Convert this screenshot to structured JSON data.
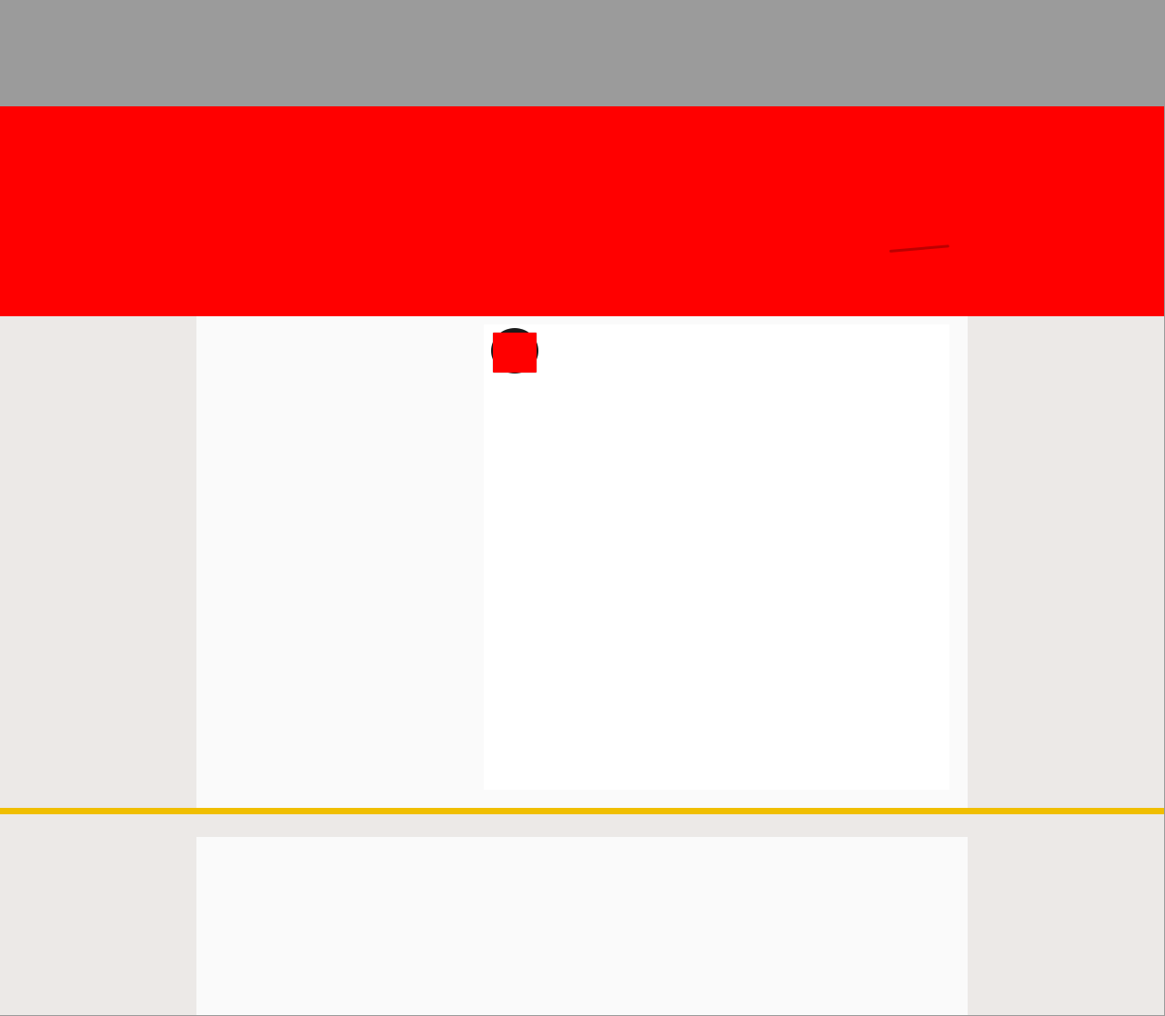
{
  "colors": {
    "top_bar": "#9B9B9B",
    "hero_banner": "#FF0000",
    "page_background": "#ECE9E7",
    "panel_background": "#FAFAFA",
    "card_background": "#FFFFFF",
    "divider_accent": "#F0BE00",
    "badge_ring": "#1A1A1A",
    "badge_fill": "#FF0000"
  },
  "icons": {
    "media_badge": "red-square-badge-icon"
  }
}
